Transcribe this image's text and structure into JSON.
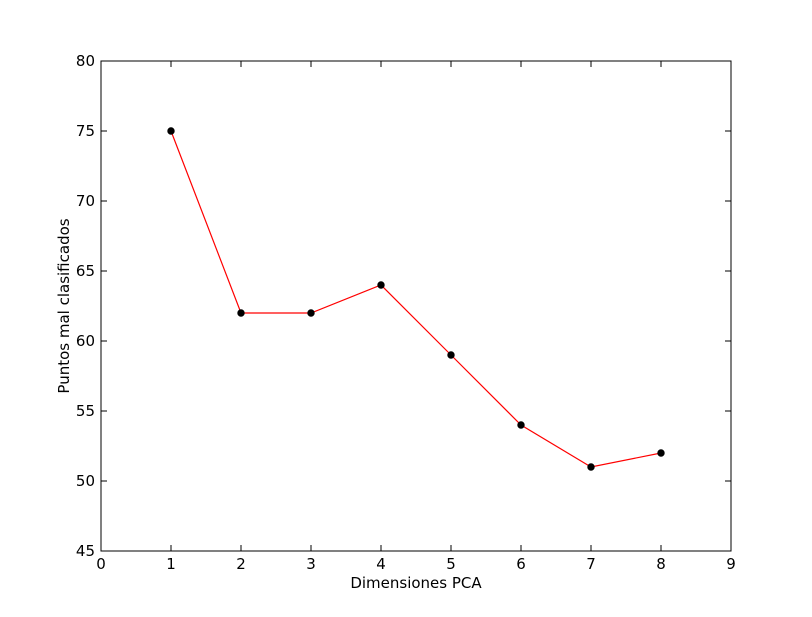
{
  "chart_data": {
    "type": "line",
    "title": "",
    "xlabel": "Dimensiones PCA",
    "ylabel": "Puntos mal clasificados",
    "xlim": [
      0,
      9
    ],
    "ylim": [
      45,
      80
    ],
    "xticks": [
      0,
      1,
      2,
      3,
      4,
      5,
      6,
      7,
      8,
      9
    ],
    "yticks": [
      45,
      50,
      55,
      60,
      65,
      70,
      75,
      80
    ],
    "grid": false,
    "legend": "none",
    "series": [
      {
        "x": [
          1,
          2,
          3,
          4,
          5,
          6,
          7,
          8
        ],
        "y": [
          75,
          62,
          62,
          64,
          59,
          54,
          51,
          52
        ],
        "line_color": "#ff0000",
        "marker_color": "#000000",
        "marker": "circle"
      }
    ]
  }
}
